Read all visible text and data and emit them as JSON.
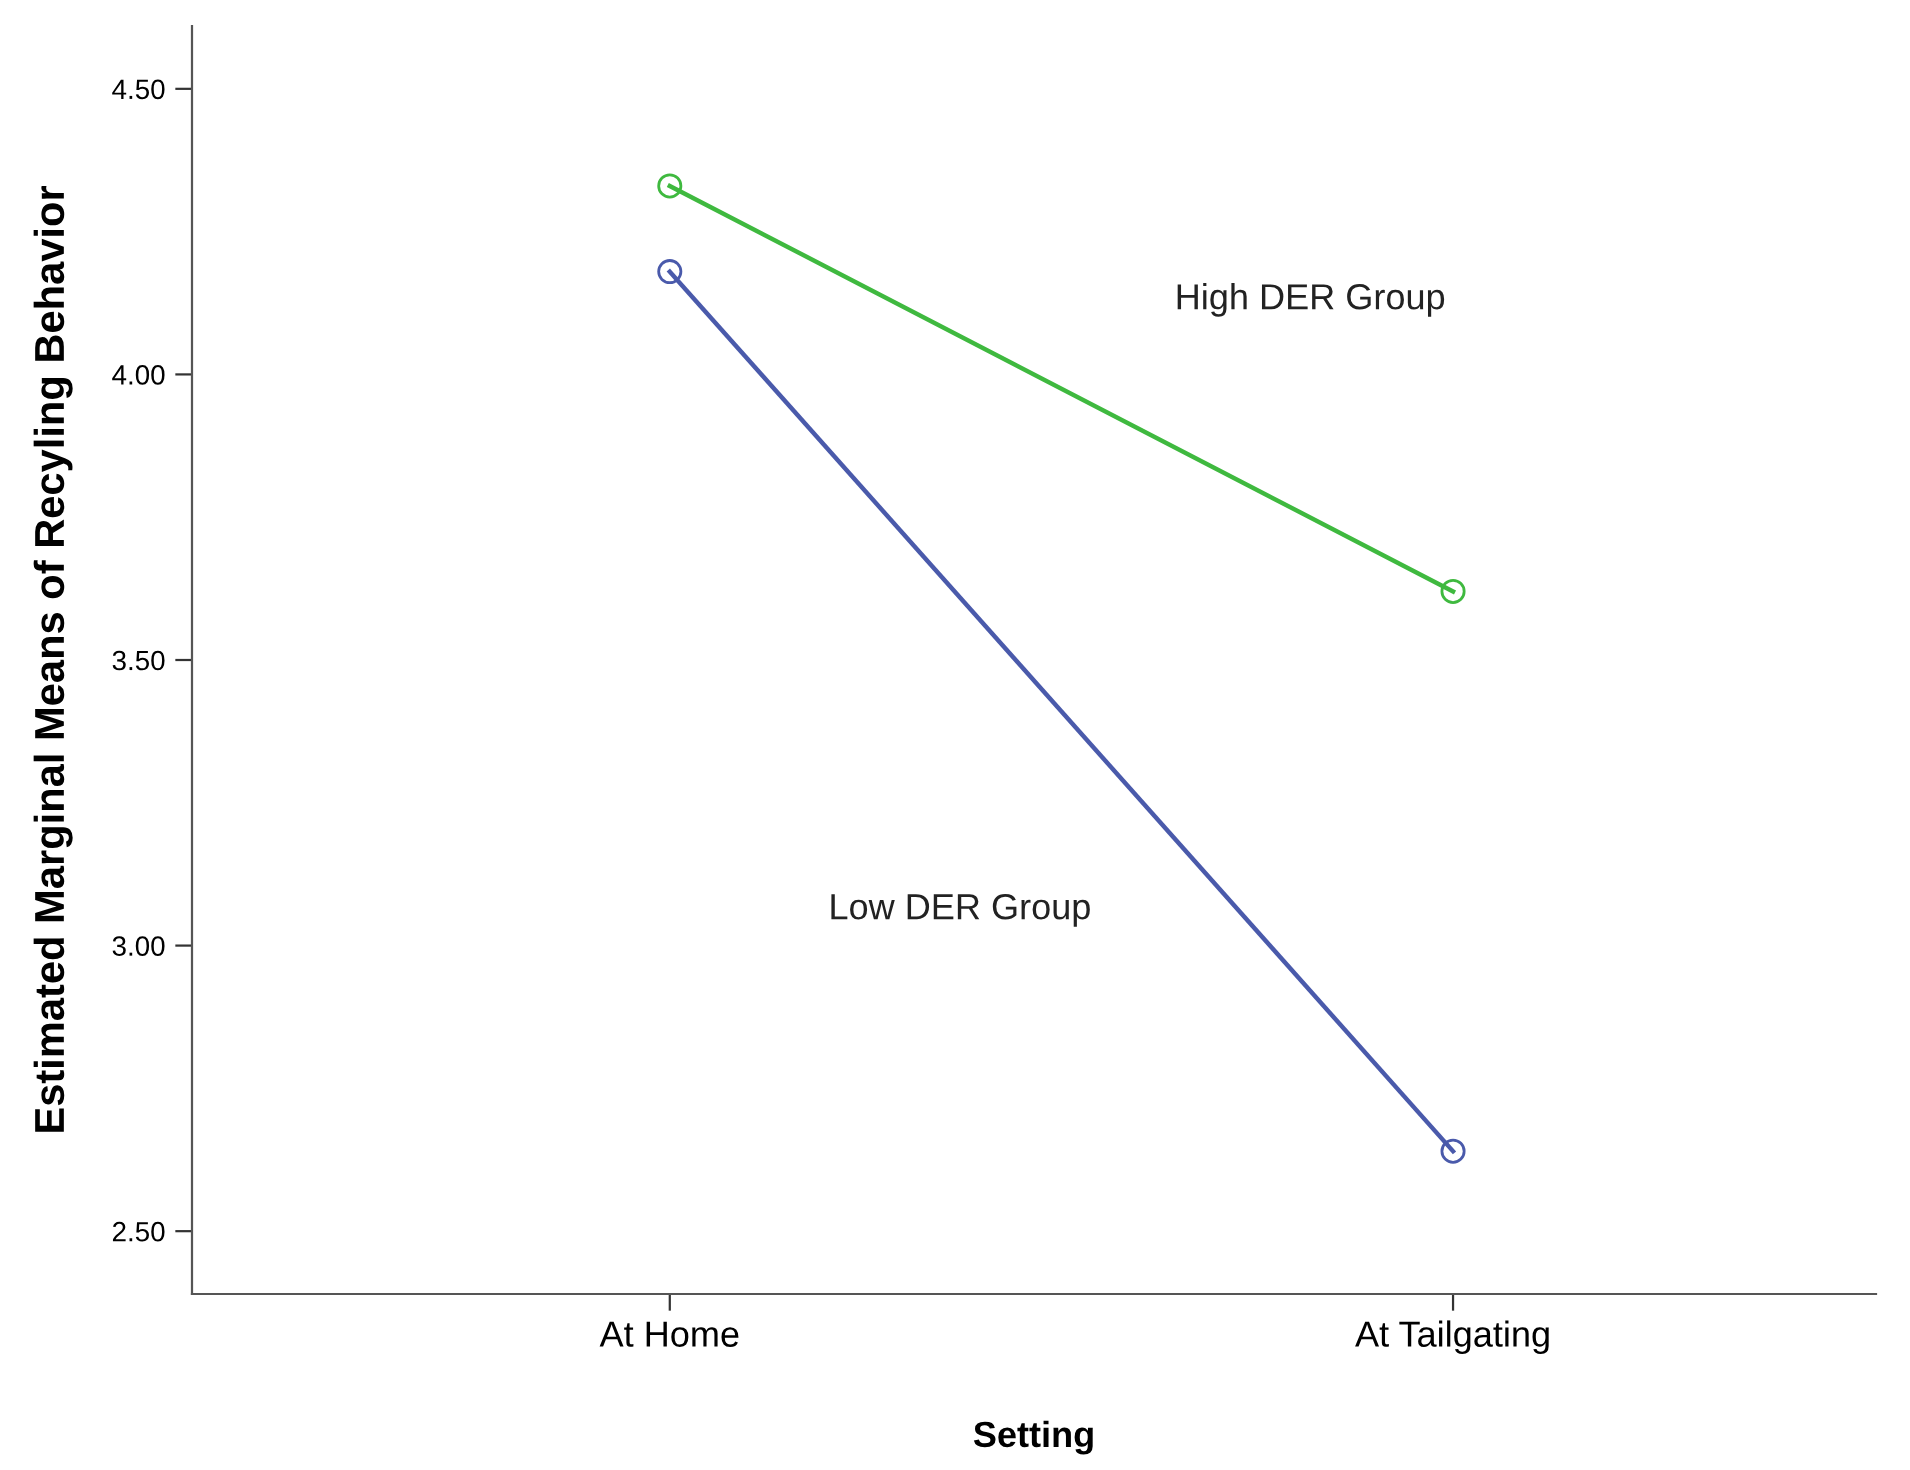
{
  "chart_data": {
    "type": "line",
    "xlabel": "Setting",
    "ylabel": "Estimated Marginal Means of Recyling Behavior",
    "categories": [
      "At Home",
      "At Tailgating"
    ],
    "series": [
      {
        "color": "#3fb93f",
        "values": [
          4.33,
          3.62
        ]
      },
      {
        "color": "#4a5aab",
        "values": [
          4.18,
          2.64
        ]
      }
    ],
    "annotations": [
      "High DER Group",
      "Low DER Group"
    ],
    "ylim": [
      2.39,
      4.61
    ],
    "yticks": [
      {
        "value": 2.5,
        "label": "2.50"
      },
      {
        "value": 3.0,
        "label": "3.00"
      },
      {
        "value": 3.5,
        "label": "3.50"
      },
      {
        "value": 4.0,
        "label": "4.00"
      },
      {
        "value": 4.5,
        "label": "4.50"
      }
    ],
    "marker": "circle",
    "line_style": "solid",
    "grid": false,
    "legend": false
  }
}
